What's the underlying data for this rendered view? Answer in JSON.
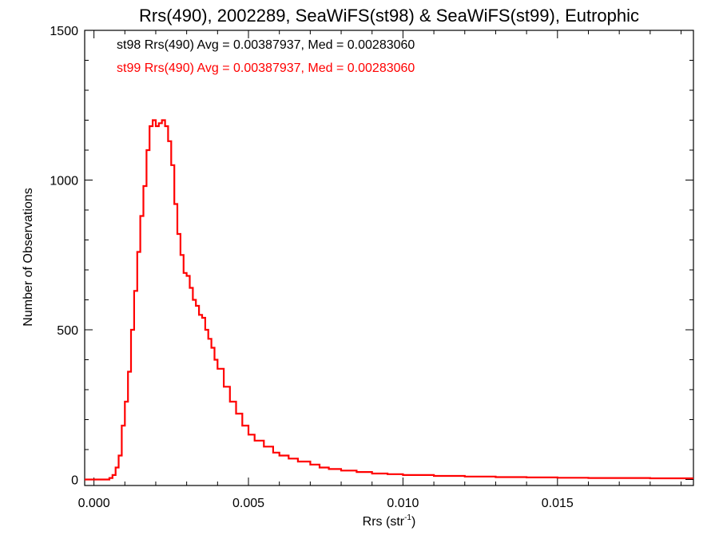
{
  "chart_data": {
    "type": "line",
    "title": "Rrs(490), 2002289, SeaWiFS(st98) & SeaWiFS(st99), Eutrophic",
    "xlabel": "Rrs (str",
    "xlabel_sup": "-1",
    "xlabel_close": ")",
    "ylabel": "Number of Observations",
    "xlim": [
      -0.0003,
      0.0194
    ],
    "ylim": [
      -20,
      1500
    ],
    "x_ticks": [
      0.0,
      0.005,
      0.01,
      0.015
    ],
    "x_tick_labels": [
      "0.000",
      "0.005",
      "0.010",
      "0.015"
    ],
    "y_ticks": [
      0,
      500,
      1000,
      1500
    ],
    "y_tick_labels": [
      "0",
      "500",
      "1000",
      "1500"
    ],
    "grid": false,
    "legend_position": "top-left",
    "annotations": [
      {
        "text": "st98 Rrs(490) Avg = 0.00387937, Med = 0.00283060",
        "color": "#000000"
      },
      {
        "text": "st99 Rrs(490) Avg = 0.00387937, Med = 0.00283060",
        "color": "#ff0000"
      }
    ],
    "series": [
      {
        "color": "#ff0000",
        "style": "step",
        "x": [
          -0.0003,
          0.0005,
          0.0006,
          0.0007,
          0.0008,
          0.0009,
          0.001,
          0.0011,
          0.0012,
          0.0013,
          0.0014,
          0.0015,
          0.0016,
          0.0017,
          0.0018,
          0.0019,
          0.002,
          0.0021,
          0.0022,
          0.0023,
          0.0024,
          0.0025,
          0.0026,
          0.0027,
          0.0028,
          0.0029,
          0.003,
          0.0031,
          0.0032,
          0.0033,
          0.0034,
          0.0035,
          0.0036,
          0.0037,
          0.0038,
          0.0039,
          0.004,
          0.0042,
          0.0044,
          0.0046,
          0.0048,
          0.005,
          0.0052,
          0.0055,
          0.0058,
          0.006,
          0.0063,
          0.0066,
          0.007,
          0.0073,
          0.0076,
          0.008,
          0.0085,
          0.009,
          0.0095,
          0.01,
          0.011,
          0.012,
          0.013,
          0.014,
          0.015,
          0.016,
          0.017,
          0.018,
          0.019,
          0.0194
        ],
        "y": [
          0,
          5,
          15,
          40,
          80,
          180,
          260,
          360,
          500,
          630,
          760,
          880,
          980,
          1100,
          1180,
          1200,
          1180,
          1190,
          1200,
          1180,
          1130,
          1050,
          920,
          820,
          750,
          690,
          680,
          640,
          600,
          580,
          550,
          540,
          500,
          470,
          440,
          400,
          370,
          310,
          260,
          220,
          180,
          150,
          130,
          110,
          90,
          80,
          70,
          60,
          50,
          40,
          35,
          30,
          25,
          20,
          18,
          15,
          12,
          10,
          8,
          7,
          6,
          5,
          5,
          4,
          4,
          4
        ]
      }
    ]
  }
}
